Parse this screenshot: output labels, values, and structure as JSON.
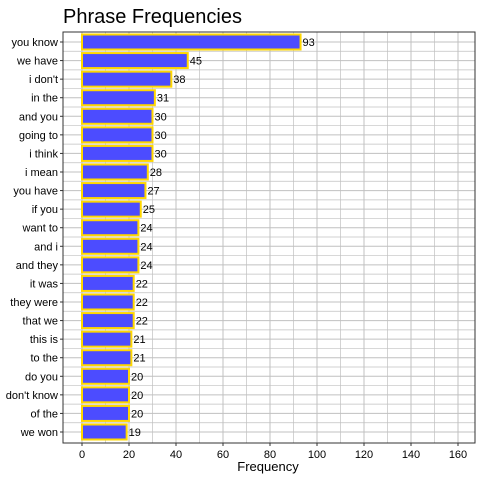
{
  "chart_data": {
    "type": "bar",
    "orientation": "horizontal",
    "title": "Phrase Frequencies",
    "xlabel": "Frequency",
    "ylabel": "",
    "xlim": [
      0,
      160
    ],
    "xticks": [
      0,
      20,
      40,
      60,
      80,
      100,
      120,
      140,
      160
    ],
    "grid": true,
    "legend": "none",
    "colors": {
      "bar_fill": "#4c4cff",
      "bar_stroke": "#ffd700",
      "grid": "#c0c0c0",
      "panel_border": "#333333"
    },
    "categories": [
      "you know",
      "we have",
      "i don't",
      "in the",
      "and you",
      "going to",
      "i think",
      "i mean",
      "you have",
      "if you",
      "want to",
      "and i",
      "and they",
      "it was",
      "they were",
      "that we",
      "this is",
      "to the",
      "do you",
      "don't know",
      "of the",
      "we won"
    ],
    "values": [
      93,
      45,
      38,
      31,
      30,
      30,
      30,
      28,
      27,
      25,
      24,
      24,
      24,
      22,
      22,
      22,
      21,
      21,
      20,
      20,
      20,
      19
    ]
  }
}
